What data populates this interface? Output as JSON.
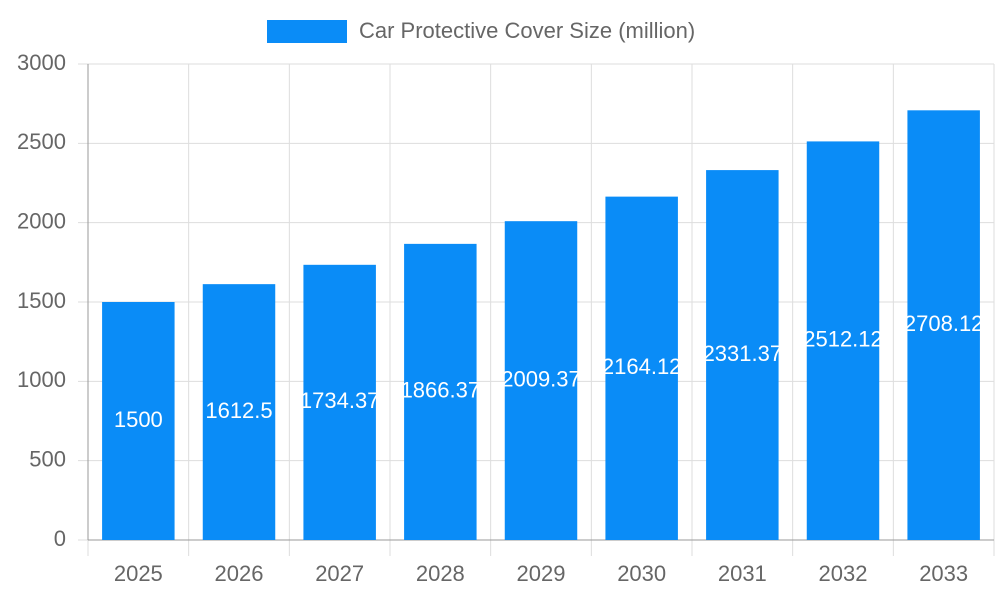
{
  "chart_data": {
    "type": "bar",
    "legend": "Car Protective Cover Size (million)",
    "categories": [
      "2025",
      "2026",
      "2027",
      "2028",
      "2029",
      "2030",
      "2031",
      "2032",
      "2033"
    ],
    "values": [
      1500,
      1612.5,
      1734.37,
      1866.37,
      2009.37,
      2164.12,
      2331.37,
      2512.12,
      2708.12
    ],
    "color": "#0a8cf7",
    "ylim": [
      0,
      3000
    ],
    "yticks": [
      0,
      500,
      1000,
      1500,
      2000,
      2500,
      3000
    ],
    "grid": true
  }
}
